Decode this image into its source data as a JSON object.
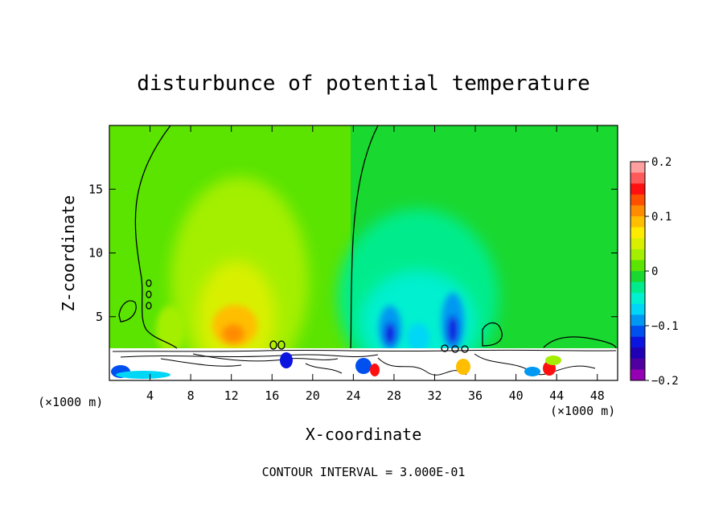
{
  "chart_data": {
    "type": "heatmap",
    "title": "disturbunce of potential temperature",
    "xlabel": "X-coordinate",
    "ylabel": "Z-coordinate",
    "x_unit": "(×1000 m)",
    "y_unit": "(×1000 m)",
    "xlim": [
      0,
      50
    ],
    "ylim": [
      0,
      20
    ],
    "x_ticks": [
      4,
      8,
      12,
      16,
      20,
      24,
      28,
      32,
      36,
      40,
      44,
      48
    ],
    "y_ticks": [
      5,
      10,
      15
    ],
    "contour_interval_text": "CONTOUR INTERVAL = 3.000E-01",
    "colorbar": {
      "min": -0.2,
      "max": 0.2,
      "step": 0.02,
      "tick_values": [
        0.2,
        0.1,
        0,
        -0.1,
        -0.2
      ],
      "tick_labels": [
        "0.2",
        "0.1",
        "0",
        "−0.1",
        "−0.2"
      ],
      "colors": [
        "#ffa0a0",
        "#ff5a5a",
        "#ff1010",
        "#ff5000",
        "#ff8c00",
        "#ffbe00",
        "#ffeb00",
        "#d8f000",
        "#a4ef00",
        "#5ae400",
        "#19d830",
        "#00ec8c",
        "#00f0d0",
        "#00d6f6",
        "#0098f2",
        "#0050f0",
        "#0c14e0",
        "#2000b4",
        "#5000a0",
        "#9600b4"
      ]
    },
    "features": [
      {
        "kind": "warm",
        "x": 12.5,
        "z_bottom": 2.5,
        "z_top": 14,
        "peak": 0.1
      },
      {
        "kind": "warm",
        "x": 6,
        "z_bottom": 2.5,
        "z_top": 7,
        "peak": 0.04
      },
      {
        "kind": "cold",
        "x": 30,
        "z_bottom": 2.5,
        "z_top": 11,
        "peak": -0.08
      },
      {
        "kind": "cold",
        "x": 27.5,
        "z_bottom": 2.5,
        "z_top": 6,
        "peak": -0.14
      },
      {
        "kind": "cold",
        "x": 33.5,
        "z_bottom": 2.5,
        "z_top": 7,
        "peak": -0.14
      }
    ]
  }
}
